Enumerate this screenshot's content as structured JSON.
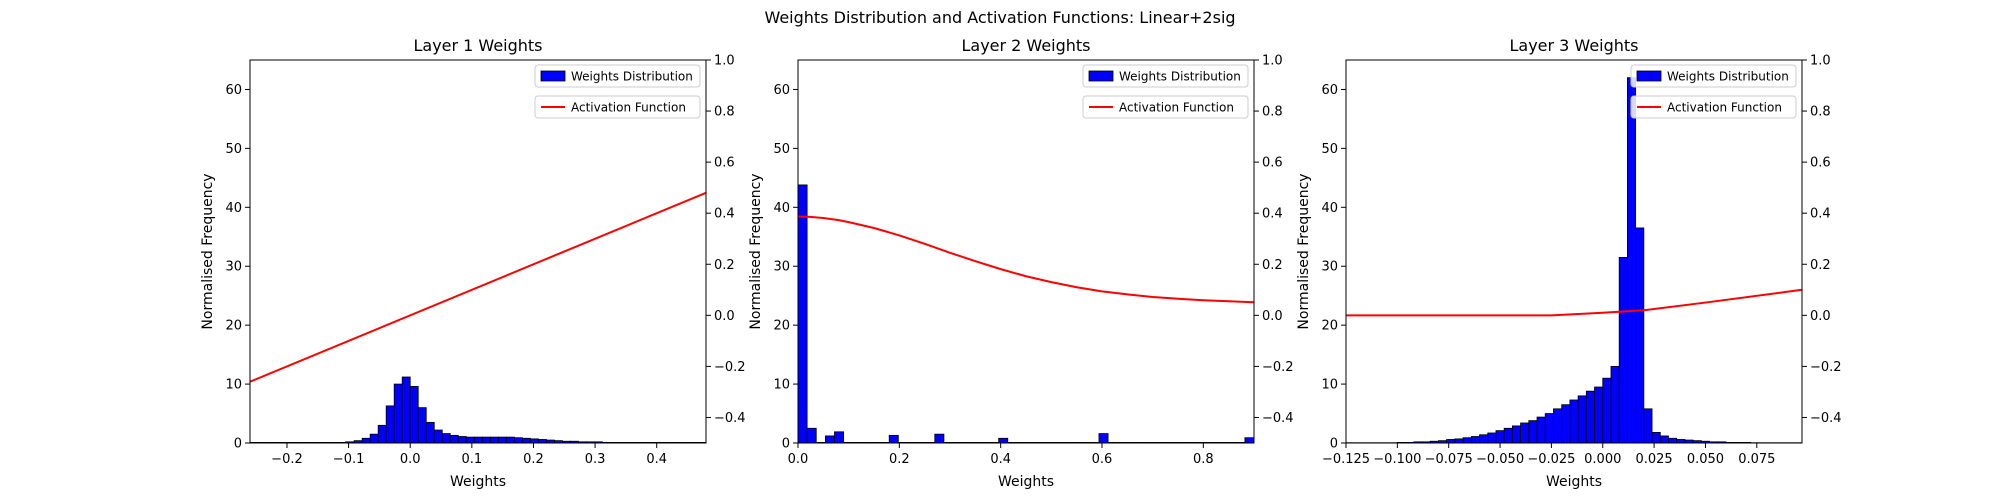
{
  "figure": {
    "suptitle": "Weights Distribution and Activation Functions: Linear+2sig"
  },
  "chart_data": [
    {
      "type": "bar",
      "title": "Layer 1 Weights",
      "xlabel": "Weights",
      "ylabel": "Normalised Frequency",
      "xlim": [
        -0.26,
        0.48
      ],
      "ylim": [
        0,
        65
      ],
      "y2lim": [
        -0.5,
        1.0
      ],
      "xticks": [
        -0.2,
        -0.1,
        0.0,
        0.1,
        0.2,
        0.3,
        0.4
      ],
      "xtick_labels": [
        "−0.2",
        "−0.1",
        "0.0",
        "0.1",
        "0.2",
        "0.3",
        "0.4"
      ],
      "yticks": [
        0,
        10,
        20,
        30,
        40,
        50,
        60
      ],
      "ytick_labels": [
        "0",
        "10",
        "20",
        "30",
        "40",
        "50",
        "60"
      ],
      "y2ticks": [
        -0.4,
        -0.2,
        0.0,
        0.2,
        0.4,
        0.6,
        0.8,
        1.0
      ],
      "y2tick_labels": [
        "−0.4",
        "−0.2",
        "0.0",
        "0.2",
        "0.4",
        "0.6",
        "0.8",
        "1.0"
      ],
      "bar_color": "#0000ff",
      "line_color": "#ff0000",
      "legend": {
        "bars": "Weights Distribution",
        "line": "Activation Function",
        "placement": "upper right"
      },
      "bins": [
        {
          "x0": -0.26,
          "x1": -0.235,
          "y": 0.1
        },
        {
          "x0": -0.235,
          "x1": -0.209,
          "y": 0.1
        },
        {
          "x0": -0.209,
          "x1": -0.183,
          "y": 0.1
        },
        {
          "x0": -0.183,
          "x1": -0.157,
          "y": 0.1
        },
        {
          "x0": -0.157,
          "x1": -0.131,
          "y": 0.1
        },
        {
          "x0": -0.131,
          "x1": -0.105,
          "y": 0.1
        },
        {
          "x0": -0.105,
          "x1": -0.091,
          "y": 0.2
        },
        {
          "x0": -0.091,
          "x1": -0.078,
          "y": 0.4
        },
        {
          "x0": -0.078,
          "x1": -0.065,
          "y": 0.8
        },
        {
          "x0": -0.065,
          "x1": -0.052,
          "y": 1.5
        },
        {
          "x0": -0.052,
          "x1": -0.039,
          "y": 3.0
        },
        {
          "x0": -0.039,
          "x1": -0.026,
          "y": 6.3
        },
        {
          "x0": -0.026,
          "x1": -0.013,
          "y": 10.0
        },
        {
          "x0": -0.013,
          "x1": 0.0,
          "y": 11.2
        },
        {
          "x0": 0.0,
          "x1": 0.013,
          "y": 9.6
        },
        {
          "x0": 0.013,
          "x1": 0.026,
          "y": 6.0
        },
        {
          "x0": 0.026,
          "x1": 0.039,
          "y": 3.5
        },
        {
          "x0": 0.039,
          "x1": 0.052,
          "y": 2.2
        },
        {
          "x0": 0.052,
          "x1": 0.065,
          "y": 1.6
        },
        {
          "x0": 0.065,
          "x1": 0.078,
          "y": 1.3
        },
        {
          "x0": 0.078,
          "x1": 0.091,
          "y": 1.1
        },
        {
          "x0": 0.091,
          "x1": 0.104,
          "y": 1.0
        },
        {
          "x0": 0.104,
          "x1": 0.117,
          "y": 1.0
        },
        {
          "x0": 0.117,
          "x1": 0.13,
          "y": 1.0
        },
        {
          "x0": 0.13,
          "x1": 0.143,
          "y": 1.0
        },
        {
          "x0": 0.143,
          "x1": 0.156,
          "y": 1.0
        },
        {
          "x0": 0.156,
          "x1": 0.169,
          "y": 1.0
        },
        {
          "x0": 0.169,
          "x1": 0.182,
          "y": 0.9
        },
        {
          "x0": 0.182,
          "x1": 0.195,
          "y": 0.8
        },
        {
          "x0": 0.195,
          "x1": 0.208,
          "y": 0.7
        },
        {
          "x0": 0.208,
          "x1": 0.221,
          "y": 0.6
        },
        {
          "x0": 0.221,
          "x1": 0.234,
          "y": 0.5
        },
        {
          "x0": 0.234,
          "x1": 0.247,
          "y": 0.4
        },
        {
          "x0": 0.247,
          "x1": 0.26,
          "y": 0.3
        },
        {
          "x0": 0.26,
          "x1": 0.273,
          "y": 0.3
        },
        {
          "x0": 0.273,
          "x1": 0.286,
          "y": 0.2
        },
        {
          "x0": 0.286,
          "x1": 0.299,
          "y": 0.2
        },
        {
          "x0": 0.299,
          "x1": 0.312,
          "y": 0.2
        },
        {
          "x0": 0.312,
          "x1": 0.325,
          "y": 0.1
        },
        {
          "x0": 0.325,
          "x1": 0.338,
          "y": 0.1
        },
        {
          "x0": 0.338,
          "x1": 0.351,
          "y": 0.1
        },
        {
          "x0": 0.351,
          "x1": 0.364,
          "y": 0.1
        },
        {
          "x0": 0.364,
          "x1": 0.39,
          "y": 0.1
        },
        {
          "x0": 0.39,
          "x1": 0.42,
          "y": 0.1
        },
        {
          "x0": 0.42,
          "x1": 0.45,
          "y": 0.1
        },
        {
          "x0": 0.45,
          "x1": 0.48,
          "y": 0.1
        }
      ],
      "line": {
        "x": [
          -0.26,
          0.48
        ],
        "y": [
          -0.26,
          0.48
        ]
      }
    },
    {
      "type": "bar",
      "title": "Layer 2 Weights",
      "xlabel": "Weights",
      "ylabel": "Normalised Frequency",
      "xlim": [
        0.0,
        0.9
      ],
      "ylim": [
        0,
        65
      ],
      "y2lim": [
        -0.5,
        1.0
      ],
      "xticks": [
        0.0,
        0.2,
        0.4,
        0.6,
        0.8
      ],
      "xtick_labels": [
        "0.0",
        "0.2",
        "0.4",
        "0.6",
        "0.8"
      ],
      "yticks": [
        0,
        10,
        20,
        30,
        40,
        50,
        60
      ],
      "ytick_labels": [
        "0",
        "10",
        "20",
        "30",
        "40",
        "50",
        "60"
      ],
      "y2ticks": [
        -0.4,
        -0.2,
        0.0,
        0.2,
        0.4,
        0.6,
        0.8,
        1.0
      ],
      "y2tick_labels": [
        "−0.4",
        "−0.2",
        "0.0",
        "0.2",
        "0.4",
        "0.6",
        "0.8",
        "1.0"
      ],
      "bar_color": "#0000ff",
      "line_color": "#ff0000",
      "legend": {
        "bars": "Weights Distribution",
        "line": "Activation Function",
        "placement": "upper right"
      },
      "bins": [
        {
          "x0": 0.0,
          "x1": 0.018,
          "y": 43.8
        },
        {
          "x0": 0.018,
          "x1": 0.036,
          "y": 2.5
        },
        {
          "x0": 0.036,
          "x1": 0.054,
          "y": 0.1
        },
        {
          "x0": 0.054,
          "x1": 0.072,
          "y": 1.2
        },
        {
          "x0": 0.072,
          "x1": 0.09,
          "y": 1.9
        },
        {
          "x0": 0.09,
          "x1": 0.108,
          "y": 0.1
        },
        {
          "x0": 0.108,
          "x1": 0.126,
          "y": 0.1
        },
        {
          "x0": 0.126,
          "x1": 0.144,
          "y": 0.1
        },
        {
          "x0": 0.144,
          "x1": 0.162,
          "y": 0.1
        },
        {
          "x0": 0.162,
          "x1": 0.18,
          "y": 0.1
        },
        {
          "x0": 0.18,
          "x1": 0.198,
          "y": 1.3
        },
        {
          "x0": 0.198,
          "x1": 0.216,
          "y": 0.1
        },
        {
          "x0": 0.216,
          "x1": 0.234,
          "y": 0.1
        },
        {
          "x0": 0.234,
          "x1": 0.252,
          "y": 0.1
        },
        {
          "x0": 0.252,
          "x1": 0.27,
          "y": 0.1
        },
        {
          "x0": 0.27,
          "x1": 0.288,
          "y": 1.5
        },
        {
          "x0": 0.288,
          "x1": 0.306,
          "y": 0.1
        },
        {
          "x0": 0.306,
          "x1": 0.324,
          "y": 0.1
        },
        {
          "x0": 0.324,
          "x1": 0.342,
          "y": 0.1
        },
        {
          "x0": 0.342,
          "x1": 0.36,
          "y": 0.1
        },
        {
          "x0": 0.36,
          "x1": 0.378,
          "y": 0.1
        },
        {
          "x0": 0.378,
          "x1": 0.396,
          "y": 0.1
        },
        {
          "x0": 0.396,
          "x1": 0.414,
          "y": 0.8
        },
        {
          "x0": 0.414,
          "x1": 0.432,
          "y": 0.1
        },
        {
          "x0": 0.432,
          "x1": 0.45,
          "y": 0.1
        },
        {
          "x0": 0.45,
          "x1": 0.468,
          "y": 0.1
        },
        {
          "x0": 0.468,
          "x1": 0.486,
          "y": 0.1
        },
        {
          "x0": 0.486,
          "x1": 0.504,
          "y": 0.1
        },
        {
          "x0": 0.504,
          "x1": 0.522,
          "y": 0.1
        },
        {
          "x0": 0.522,
          "x1": 0.54,
          "y": 0.1
        },
        {
          "x0": 0.54,
          "x1": 0.558,
          "y": 0.1
        },
        {
          "x0": 0.558,
          "x1": 0.576,
          "y": 0.1
        },
        {
          "x0": 0.576,
          "x1": 0.594,
          "y": 0.1
        },
        {
          "x0": 0.594,
          "x1": 0.612,
          "y": 1.6
        },
        {
          "x0": 0.612,
          "x1": 0.63,
          "y": 0.1
        },
        {
          "x0": 0.63,
          "x1": 0.648,
          "y": 0.1
        },
        {
          "x0": 0.648,
          "x1": 0.666,
          "y": 0.1
        },
        {
          "x0": 0.666,
          "x1": 0.684,
          "y": 0.1
        },
        {
          "x0": 0.684,
          "x1": 0.702,
          "y": 0.1
        },
        {
          "x0": 0.702,
          "x1": 0.72,
          "y": 0.1
        },
        {
          "x0": 0.72,
          "x1": 0.738,
          "y": 0.1
        },
        {
          "x0": 0.738,
          "x1": 0.756,
          "y": 0.1
        },
        {
          "x0": 0.756,
          "x1": 0.774,
          "y": 0.1
        },
        {
          "x0": 0.774,
          "x1": 0.792,
          "y": 0.1
        },
        {
          "x0": 0.792,
          "x1": 0.81,
          "y": 0.1
        },
        {
          "x0": 0.81,
          "x1": 0.828,
          "y": 0.1
        },
        {
          "x0": 0.828,
          "x1": 0.846,
          "y": 0.1
        },
        {
          "x0": 0.846,
          "x1": 0.864,
          "y": 0.1
        },
        {
          "x0": 0.864,
          "x1": 0.882,
          "y": 0.1
        },
        {
          "x0": 0.882,
          "x1": 0.9,
          "y": 0.9
        }
      ],
      "line": {
        "x": [
          0.0,
          0.02,
          0.05,
          0.08,
          0.1,
          0.15,
          0.2,
          0.25,
          0.3,
          0.35,
          0.4,
          0.45,
          0.5,
          0.55,
          0.6,
          0.65,
          0.7,
          0.75,
          0.8,
          0.85,
          0.9
        ],
        "y": [
          0.387,
          0.386,
          0.381,
          0.373,
          0.365,
          0.342,
          0.313,
          0.28,
          0.245,
          0.212,
          0.181,
          0.153,
          0.13,
          0.11,
          0.094,
          0.082,
          0.072,
          0.065,
          0.059,
          0.055,
          0.051
        ]
      }
    },
    {
      "type": "bar",
      "title": "Layer 3 Weights",
      "xlabel": "Weights",
      "ylabel": "Normalised Frequency",
      "xlim": [
        -0.125,
        0.097
      ],
      "ylim": [
        0,
        65
      ],
      "y2lim": [
        -0.5,
        1.0
      ],
      "xticks": [
        -0.125,
        -0.1,
        -0.075,
        -0.05,
        -0.025,
        0.0,
        0.025,
        0.05,
        0.075
      ],
      "xtick_labels": [
        "−0.125",
        "−0.100",
        "−0.075",
        "−0.050",
        "−0.025",
        "0.000",
        "0.025",
        "0.050",
        "0.075"
      ],
      "yticks": [
        0,
        10,
        20,
        30,
        40,
        50,
        60
      ],
      "ytick_labels": [
        "0",
        "10",
        "20",
        "30",
        "40",
        "50",
        "60"
      ],
      "y2ticks": [
        -0.4,
        -0.2,
        0.0,
        0.2,
        0.4,
        0.6,
        0.8,
        1.0
      ],
      "y2tick_labels": [
        "−0.4",
        "−0.2",
        "0.0",
        "0.2",
        "0.4",
        "0.6",
        "0.8",
        "1.0"
      ],
      "bar_color": "#0000ff",
      "line_color": "#ff0000",
      "legend": {
        "bars": "Weights Distribution",
        "line": "Activation Function",
        "placement": "upper right"
      },
      "bins": [
        {
          "x0": -0.125,
          "x1": -0.1,
          "y": 0.05
        },
        {
          "x0": -0.1,
          "x1": -0.096,
          "y": 0.1
        },
        {
          "x0": -0.096,
          "x1": -0.092,
          "y": 0.1
        },
        {
          "x0": -0.092,
          "x1": -0.088,
          "y": 0.2
        },
        {
          "x0": -0.088,
          "x1": -0.084,
          "y": 0.2
        },
        {
          "x0": -0.084,
          "x1": -0.08,
          "y": 0.3
        },
        {
          "x0": -0.08,
          "x1": -0.076,
          "y": 0.4
        },
        {
          "x0": -0.076,
          "x1": -0.072,
          "y": 0.6
        },
        {
          "x0": -0.072,
          "x1": -0.068,
          "y": 0.7
        },
        {
          "x0": -0.068,
          "x1": -0.064,
          "y": 0.9
        },
        {
          "x0": -0.064,
          "x1": -0.06,
          "y": 1.1
        },
        {
          "x0": -0.06,
          "x1": -0.056,
          "y": 1.4
        },
        {
          "x0": -0.056,
          "x1": -0.052,
          "y": 1.7
        },
        {
          "x0": -0.052,
          "x1": -0.048,
          "y": 2.1
        },
        {
          "x0": -0.048,
          "x1": -0.044,
          "y": 2.5
        },
        {
          "x0": -0.044,
          "x1": -0.04,
          "y": 2.9
        },
        {
          "x0": -0.04,
          "x1": -0.036,
          "y": 3.4
        },
        {
          "x0": -0.036,
          "x1": -0.032,
          "y": 3.8
        },
        {
          "x0": -0.032,
          "x1": -0.028,
          "y": 4.4
        },
        {
          "x0": -0.028,
          "x1": -0.024,
          "y": 5.0
        },
        {
          "x0": -0.024,
          "x1": -0.02,
          "y": 5.8
        },
        {
          "x0": -0.02,
          "x1": -0.016,
          "y": 6.5
        },
        {
          "x0": -0.016,
          "x1": -0.012,
          "y": 7.3
        },
        {
          "x0": -0.012,
          "x1": -0.008,
          "y": 8.0
        },
        {
          "x0": -0.008,
          "x1": -0.004,
          "y": 8.8
        },
        {
          "x0": -0.004,
          "x1": 0.0,
          "y": 9.5
        },
        {
          "x0": 0.0,
          "x1": 0.004,
          "y": 11.0
        },
        {
          "x0": 0.004,
          "x1": 0.008,
          "y": 13.0
        },
        {
          "x0": 0.008,
          "x1": 0.012,
          "y": 31.5
        },
        {
          "x0": 0.012,
          "x1": 0.016,
          "y": 62.0
        },
        {
          "x0": 0.016,
          "x1": 0.02,
          "y": 36.5
        },
        {
          "x0": 0.02,
          "x1": 0.024,
          "y": 5.8
        },
        {
          "x0": 0.024,
          "x1": 0.028,
          "y": 1.8
        },
        {
          "x0": 0.028,
          "x1": 0.032,
          "y": 1.2
        },
        {
          "x0": 0.032,
          "x1": 0.036,
          "y": 0.8
        },
        {
          "x0": 0.036,
          "x1": 0.04,
          "y": 0.6
        },
        {
          "x0": 0.04,
          "x1": 0.044,
          "y": 0.5
        },
        {
          "x0": 0.044,
          "x1": 0.048,
          "y": 0.4
        },
        {
          "x0": 0.048,
          "x1": 0.052,
          "y": 0.3
        },
        {
          "x0": 0.052,
          "x1": 0.056,
          "y": 0.2
        },
        {
          "x0": 0.056,
          "x1": 0.06,
          "y": 0.2
        },
        {
          "x0": 0.06,
          "x1": 0.064,
          "y": 0.1
        },
        {
          "x0": 0.064,
          "x1": 0.068,
          "y": 0.1
        },
        {
          "x0": 0.068,
          "x1": 0.072,
          "y": 0.1
        },
        {
          "x0": 0.072,
          "x1": 0.076,
          "y": 0.05
        },
        {
          "x0": 0.076,
          "x1": 0.097,
          "y": 0.05
        }
      ],
      "line": {
        "x": [
          -0.125,
          -0.025,
          0.0,
          0.02,
          0.05,
          0.097
        ],
        "y": [
          0.0,
          0.0,
          0.01,
          0.02,
          0.05,
          0.1
        ]
      }
    }
  ]
}
